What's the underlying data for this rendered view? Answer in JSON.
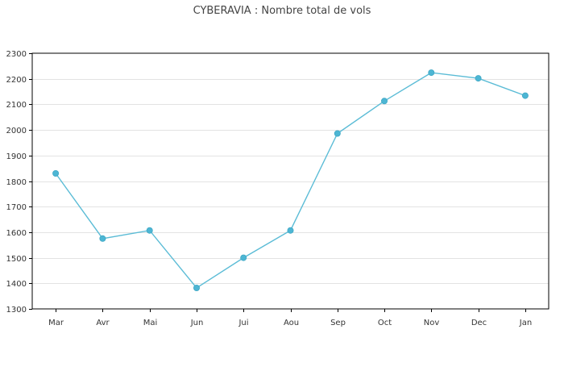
{
  "chart_data": {
    "type": "line",
    "title": "CYBERAVIA : Nombre total de vols",
    "categories": [
      "Mar",
      "Avr",
      "Mai",
      "Jun",
      "Jui",
      "Aou",
      "Sep",
      "Oct",
      "Nov",
      "Dec",
      "Jan"
    ],
    "values": [
      1830,
      1575,
      1607,
      1382,
      1500,
      1607,
      1986,
      2113,
      2224,
      2202,
      2134
    ],
    "xlabel": "",
    "ylabel": "",
    "ylim": [
      1300,
      2300
    ],
    "yticks": [
      1300,
      1400,
      1500,
      1600,
      1700,
      1800,
      1900,
      2000,
      2100,
      2200,
      2300
    ],
    "grid": true,
    "legend": "none",
    "colors": {
      "line": "#5bbcd6",
      "marker": "#4db6d4",
      "grid": "#e3e3e3",
      "frame": "#000000",
      "text": "#333333"
    }
  }
}
